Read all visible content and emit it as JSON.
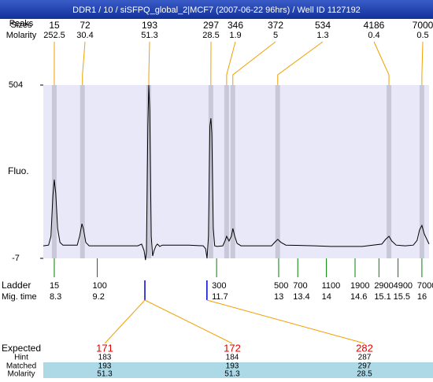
{
  "chart_data": {
    "type": "line",
    "title": "DDR1 / 10 / siSFPQ_global_2|MCF7 (2007-06-22 96hrs) / Well ID 1127192",
    "y_label": "Fluo.",
    "ylim": [
      -7,
      504
    ],
    "yticks": [
      504,
      -7
    ],
    "xlim": [
      8.07,
      16.15
    ],
    "series": [
      {
        "color": "#000000",
        "x": [
          8.07,
          8.18,
          8.23,
          8.27,
          8.3,
          8.33,
          8.37,
          8.42,
          8.48,
          8.78,
          8.83,
          8.88,
          8.91,
          8.96,
          9.03,
          9.64,
          10.05,
          10.13,
          10.18,
          10.21,
          10.23,
          10.26,
          10.28,
          10.3,
          10.33,
          10.36,
          10.39,
          10.43,
          10.46,
          10.51,
          10.56,
          11.12,
          11.42,
          11.47,
          11.5,
          11.53,
          11.56,
          11.58,
          11.6,
          11.63,
          11.66,
          11.71,
          11.83,
          11.88,
          11.91,
          11.96,
          12.01,
          12.04,
          12.08,
          12.13,
          12.21,
          12.85,
          12.93,
          12.98,
          13.05,
          13.15,
          13.76,
          14.09,
          14.75,
          15.16,
          15.24,
          15.31,
          15.37,
          15.46,
          15.65,
          15.82,
          15.9,
          15.95,
          16.0,
          16.05,
          16.15
        ],
        "values": [
          30,
          32,
          58,
          174,
          225,
          186,
          81,
          40,
          32,
          32,
          58,
          95,
          81,
          40,
          30,
          30,
          30,
          35,
          16,
          -12,
          12,
          383,
          504,
          430,
          58,
          0,
          16,
          30,
          35,
          28,
          32,
          32,
          30,
          21,
          -7,
          58,
          383,
          406,
          360,
          81,
          30,
          28,
          30,
          46,
          58,
          44,
          58,
          81,
          58,
          37,
          30,
          30,
          42,
          49,
          40,
          32,
          30,
          28,
          28,
          35,
          49,
          58,
          44,
          32,
          30,
          32,
          46,
          77,
          90,
          65,
          35
        ]
      }
    ],
    "size_label": "Sizes",
    "peak_label": "Peaks",
    "molarity_label": "Molarity",
    "peaks": {
      "color": "#f0a000",
      "band_color": "#c8c8d8",
      "x": [
        8.3,
        8.89,
        10.28,
        11.58,
        11.91,
        12.04,
        12.98,
        15.31,
        16.0
      ],
      "sizes": [
        15,
        72,
        193,
        297,
        346,
        372,
        534,
        4186,
        7000
      ],
      "molarity": [
        252.5,
        30.4,
        51.3,
        28.5,
        1.9,
        5,
        1.3,
        0.4,
        0.5
      ]
    },
    "ladder": {
      "label": "Ladder",
      "time_label": "Mig. time",
      "color": "#008000",
      "sizes": [
        15,
        100,
        300,
        500,
        700,
        1100,
        1900,
        2900,
        4900,
        7000
      ],
      "times": [
        8.3,
        9.2,
        11.7,
        13,
        13.4,
        14,
        14.6,
        15.1,
        15.5,
        16
      ]
    },
    "matches": {
      "mark_color": "#0000cc",
      "expected_color": "#e00000",
      "labels": [
        "Expected",
        "Hint",
        "Matched",
        "Molarity"
      ],
      "expected": [
        171,
        172,
        282
      ],
      "hint": [
        183,
        184,
        287
      ],
      "matched": [
        193,
        193,
        297
      ],
      "molarity": [
        51.3,
        51.3,
        28.5
      ]
    }
  }
}
